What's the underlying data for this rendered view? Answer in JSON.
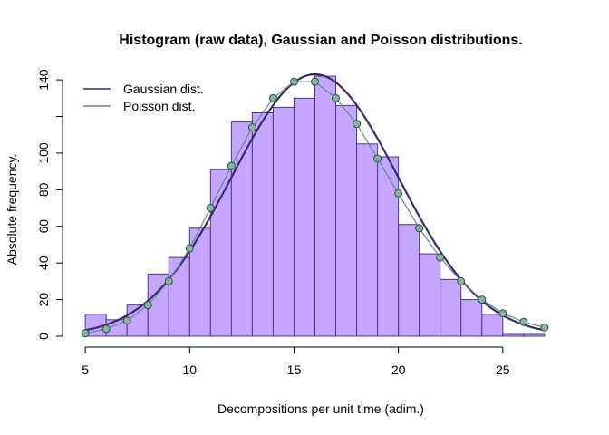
{
  "chart_data": {
    "type": "bar",
    "title": "Histogram (raw data), Gaussian and Poisson distributions.",
    "xlabel": "Decompositions per unit time (adim.)",
    "ylabel": "Absolute frequency.",
    "xlim": [
      4.3,
      27.7
    ],
    "ylim": [
      0,
      145
    ],
    "x_ticks": [
      5,
      10,
      15,
      20,
      25
    ],
    "y_ticks": [
      0,
      20,
      40,
      60,
      80,
      100,
      140
    ],
    "y_minor_ticks": [
      120
    ],
    "grid": false,
    "legend_position": "top-left",
    "colors": {
      "bar_fill": "#c4a5ff",
      "bar_stroke": "#4b3a7a",
      "gaussian": "#3b2a6b",
      "poisson_line": "#5f8f7f",
      "poisson_point_fill": "#86b3a0",
      "poisson_point_stroke": "#2f4f45"
    },
    "histogram": {
      "bin_edges": [
        5,
        6,
        7,
        8,
        9,
        10,
        11,
        12,
        13,
        14,
        15,
        16,
        17,
        18,
        19,
        20,
        21,
        22,
        23,
        24,
        25,
        26,
        27
      ],
      "counts": [
        12,
        9,
        17,
        34,
        43,
        59,
        91,
        117,
        122,
        125,
        130,
        142,
        126,
        105,
        98,
        61,
        45,
        31,
        20,
        12,
        1,
        1
      ]
    },
    "series": [
      {
        "name": "Gaussian dist.",
        "kind": "curve",
        "mean": 16,
        "sd": 4,
        "peak": 143
      },
      {
        "name": "Poisson dist.",
        "kind": "line-points",
        "x": [
          5,
          6,
          7,
          8,
          9,
          10,
          11,
          12,
          13,
          14,
          15,
          16,
          17,
          18,
          19,
          20,
          21,
          22,
          23,
          24,
          25,
          26,
          27
        ],
        "values": [
          1.6,
          4,
          8.5,
          17,
          30,
          48,
          70,
          93,
          114,
          130,
          139,
          139,
          130,
          116,
          97,
          78,
          59,
          43,
          30,
          20,
          12.5,
          7.8,
          4.8
        ]
      }
    ]
  }
}
